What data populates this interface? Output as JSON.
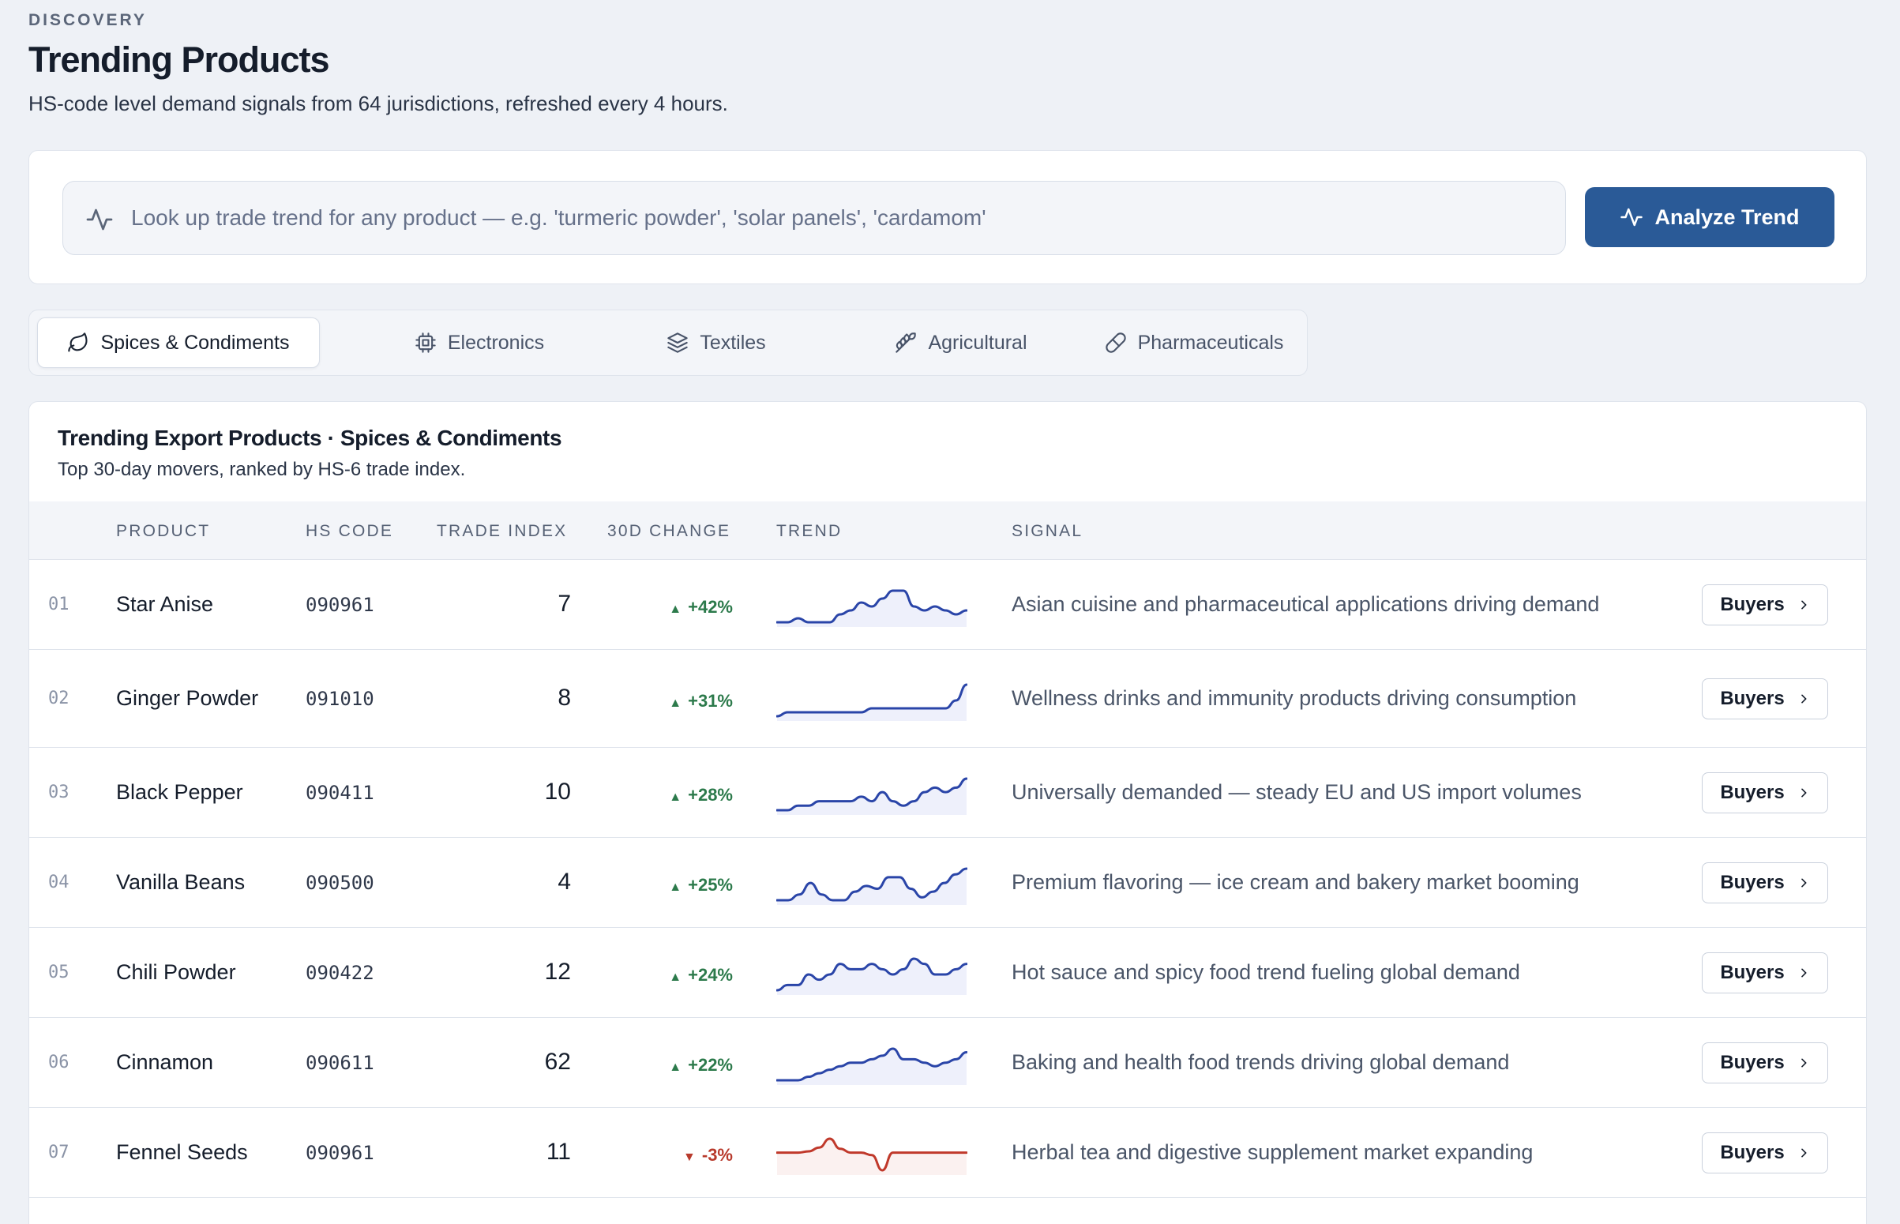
{
  "header": {
    "eyebrow": "DISCOVERY",
    "title": "Trending Products",
    "subtitle": "HS-code level demand signals from 64 jurisdictions, refreshed every 4 hours."
  },
  "search": {
    "placeholder": "Look up trade trend for any product — e.g. 'turmeric powder', 'solar panels', 'cardamom'",
    "button_label": "Analyze Trend",
    "icon": "activity-icon"
  },
  "tabs": [
    {
      "label": "Spices & Condiments",
      "icon": "leaf-icon",
      "active": true
    },
    {
      "label": "Electronics",
      "icon": "chip-icon",
      "active": false
    },
    {
      "label": "Textiles",
      "icon": "layers-icon",
      "active": false
    },
    {
      "label": "Agricultural",
      "icon": "wheat-icon",
      "active": false
    },
    {
      "label": "Pharmaceuticals",
      "icon": "pill-icon",
      "active": false
    }
  ],
  "table": {
    "title": "Trending Export Products · Spices & Condiments",
    "subtitle": "Top 30-day movers, ranked by HS-6 trade index.",
    "columns": {
      "product": "PRODUCT",
      "hs_code": "HS CODE",
      "trade_index": "TRADE INDEX",
      "change": "30D CHANGE",
      "trend": "TREND",
      "signal": "SIGNAL"
    },
    "buyers_label": "Buyers",
    "colors": {
      "up": "#2c7a4b",
      "down": "#b83a2c",
      "spark_up": "#2a45a8",
      "spark_down": "#c0392b"
    },
    "rows": [
      {
        "rank": "01",
        "product": "Star Anise",
        "hs": "090961",
        "index": "7",
        "change": "+42%",
        "dir": "up",
        "signal": "Asian cuisine and pharmaceutical applications driving demand",
        "trend": [
          4,
          4,
          5,
          4,
          4,
          4,
          6,
          7,
          9,
          8,
          10,
          12,
          12,
          8,
          7,
          8,
          7,
          6,
          7
        ]
      },
      {
        "rank": "02",
        "product": "Ginger Powder",
        "hs": "091010",
        "index": "8",
        "change": "+31%",
        "dir": "up",
        "signal": "Wellness drinks and immunity products driving consumption",
        "trend": [
          2,
          4,
          4,
          4,
          4,
          4,
          4,
          4,
          4,
          6,
          6,
          6,
          6,
          6,
          6,
          6,
          6,
          10,
          18
        ]
      },
      {
        "rank": "03",
        "product": "Black Pepper",
        "hs": "090411",
        "index": "10",
        "change": "+28%",
        "dir": "up",
        "signal": "Universally demanded — steady EU and US import volumes",
        "trend": [
          6,
          6,
          7,
          7,
          8,
          8,
          8,
          8,
          9,
          8,
          10,
          8,
          7,
          8,
          10,
          11,
          10,
          11,
          13
        ]
      },
      {
        "rank": "04",
        "product": "Vanilla Beans",
        "hs": "090500",
        "index": "4",
        "change": "+25%",
        "dir": "up",
        "signal": "Premium flavoring — ice cream and bakery market booming",
        "trend": [
          8,
          8,
          10,
          14,
          10,
          8,
          8,
          11,
          13,
          12,
          16,
          16,
          12,
          9,
          11,
          14,
          17,
          19
        ]
      },
      {
        "rank": "05",
        "product": "Chili Powder",
        "hs": "090422",
        "index": "12",
        "change": "+24%",
        "dir": "up",
        "signal": "Hot sauce and spicy food trend fueling global demand",
        "trend": [
          8,
          9,
          9,
          11,
          10,
          11,
          13,
          12,
          12,
          13,
          12,
          11,
          12,
          14,
          13,
          11,
          11,
          12,
          13
        ]
      },
      {
        "rank": "06",
        "product": "Cinnamon",
        "hs": "090611",
        "index": "62",
        "change": "+22%",
        "dir": "up",
        "signal": "Baking and health food trends driving global demand",
        "trend": [
          8,
          8,
          8,
          9,
          10,
          11,
          12,
          13,
          13,
          14,
          15,
          17,
          14,
          14,
          13,
          12,
          13,
          14,
          16
        ]
      },
      {
        "rank": "07",
        "product": "Fennel Seeds",
        "hs": "090961",
        "index": "11",
        "change": "-3%",
        "dir": "down",
        "signal": "Herbal tea and digestive supplement market expanding",
        "trend": [
          10,
          10,
          10,
          11,
          14,
          21,
          13,
          10,
          10,
          8,
          -4,
          10,
          10,
          10,
          10,
          10,
          10,
          10,
          10
        ]
      }
    ]
  }
}
